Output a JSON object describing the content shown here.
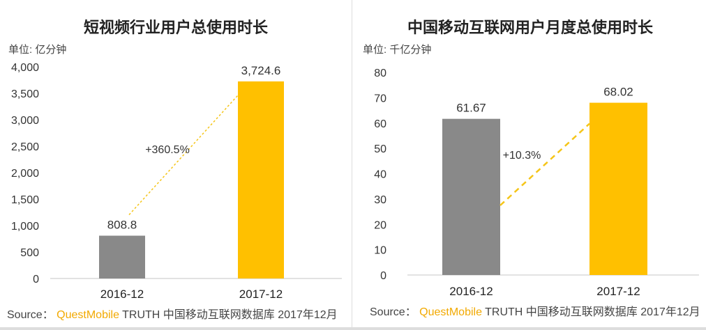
{
  "chart_data": [
    {
      "type": "bar",
      "title": "短视频行业用户总使用时长",
      "unit": "单位: 亿分钟",
      "categories": [
        "2016-12",
        "2017-12"
      ],
      "values": [
        808.8,
        3724.6
      ],
      "value_labels": [
        "808.8",
        "3,724.6"
      ],
      "ylim": [
        0,
        4000
      ],
      "yticks": [
        0,
        500,
        1000,
        1500,
        2000,
        2500,
        3000,
        3500,
        4000
      ],
      "ytick_labels": [
        "0",
        "500",
        "1,000",
        "1,500",
        "2,000",
        "2,500",
        "3,000",
        "3,500",
        "4,000"
      ],
      "growth_label": "+360.5%",
      "colors": [
        "#898989",
        "#ffc000"
      ],
      "grid": false
    },
    {
      "type": "bar",
      "title": "中国移动互联网用户月度总使用时长",
      "unit": "单位: 千亿分钟",
      "categories": [
        "2016-12",
        "2017-12"
      ],
      "values": [
        61.67,
        68.02
      ],
      "value_labels": [
        "61.67",
        "68.02"
      ],
      "ylim": [
        0,
        80
      ],
      "yticks": [
        0,
        10,
        20,
        30,
        40,
        50,
        60,
        70,
        80
      ],
      "ytick_labels": [
        "0",
        "10",
        "20",
        "30",
        "40",
        "50",
        "60",
        "70",
        "80"
      ],
      "growth_label": "+10.3%",
      "colors": [
        "#898989",
        "#ffc000"
      ],
      "grid": false
    }
  ],
  "source": [
    {
      "prefix": "Source：",
      "brand": "QuestMobile",
      "rest": "TRUTH 中国移动互联网数据库 2017年12月"
    },
    {
      "prefix": "Source：",
      "brand": "QuestMobile",
      "rest": "TRUTH 中国移动互联网数据库 2017年12月"
    }
  ]
}
